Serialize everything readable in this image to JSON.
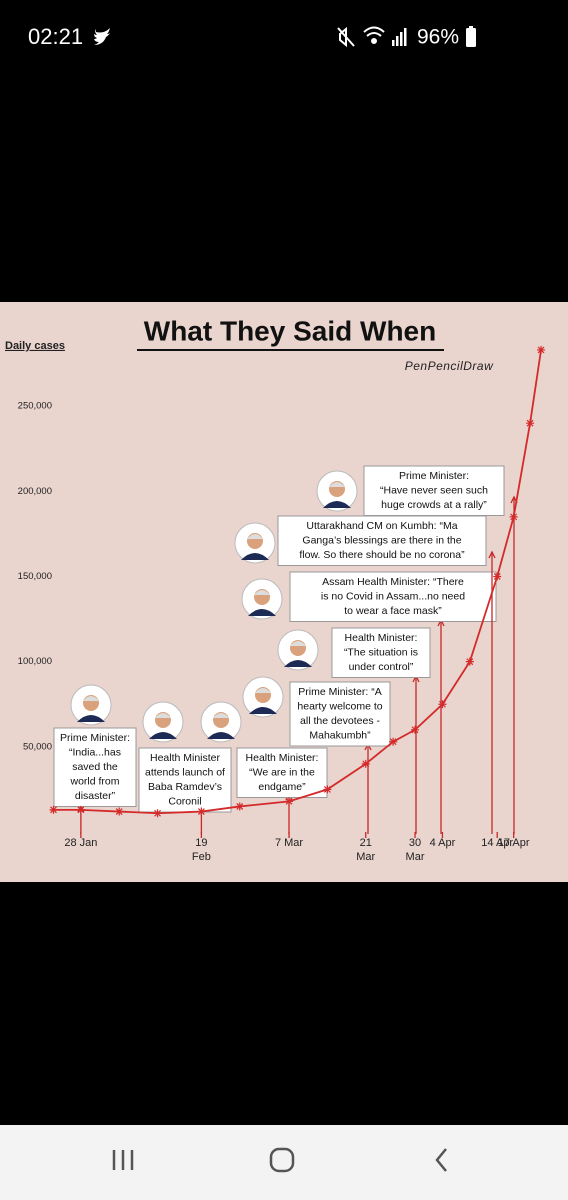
{
  "status_bar": {
    "time": "02:21",
    "battery": "96%"
  },
  "chart_data": {
    "type": "line",
    "title": "What They Said When",
    "signature": "PenPencilDraw",
    "y_label": "Daily cases",
    "x": [
      "23 Jan",
      "28 Jan",
      "4 Feb",
      "11 Feb",
      "19 Feb",
      "26 Feb",
      "7 Mar",
      "14 Mar",
      "21 Mar",
      "26 Mar",
      "30 Mar",
      "4 Apr",
      "9 Apr",
      "14 Apr",
      "17 Apr",
      "20 Apr",
      "22 Apr"
    ],
    "series": [
      {
        "name": "Daily cases",
        "color": "#d42a2a",
        "values": [
          13000,
          13000,
          12000,
          11000,
          12000,
          15000,
          18000,
          25000,
          40000,
          53000,
          60000,
          75000,
          100000,
          150000,
          185000,
          240000,
          283000
        ]
      }
    ],
    "xlim": [
      "22 Jan",
      "24 Apr"
    ],
    "xticks": [
      "28 Jan",
      "19 Feb",
      "7 Mar",
      "21 Mar",
      "30 Mar",
      "4 Apr",
      "14 Apr",
      "17 Apr"
    ],
    "ylim": [
      0,
      290000
    ],
    "yticks": [
      {
        "value": 50000,
        "label": "50,000"
      },
      {
        "value": 100000,
        "label": "100,000"
      },
      {
        "value": 150000,
        "label": "150,000"
      },
      {
        "value": 200000,
        "label": "200,000"
      },
      {
        "value": 250000,
        "label": "250,000"
      }
    ],
    "annotations": [
      {
        "lines": [
          "Prime Minister:",
          "“India...has",
          "saved the",
          "world from",
          "disaster”"
        ]
      },
      {
        "lines": [
          "Health Minister",
          "attends launch of",
          "Baba Ramdev’s",
          "Coronil"
        ]
      },
      {
        "lines": [
          "Health Minister:",
          "“We are in the",
          "endgame”"
        ]
      },
      {
        "lines": [
          "Prime Minister: “A",
          "hearty welcome to",
          "all the devotees -",
          "Mahakumbh”"
        ]
      },
      {
        "lines": [
          "Health Minister:",
          "“The situation is",
          "under control”"
        ]
      },
      {
        "lines": [
          "Assam Health Minister: “There",
          "is no Covid in Assam...no need",
          "to wear a face mask”"
        ]
      },
      {
        "lines": [
          "Uttarakhand CM on Kumbh: “Ma",
          "Ganga’s blessings are there in the",
          "flow. So there should be no corona”"
        ]
      },
      {
        "lines": [
          "Prime Minister:",
          "“Have never seen such",
          "huge crowds at a rally”"
        ]
      }
    ]
  }
}
